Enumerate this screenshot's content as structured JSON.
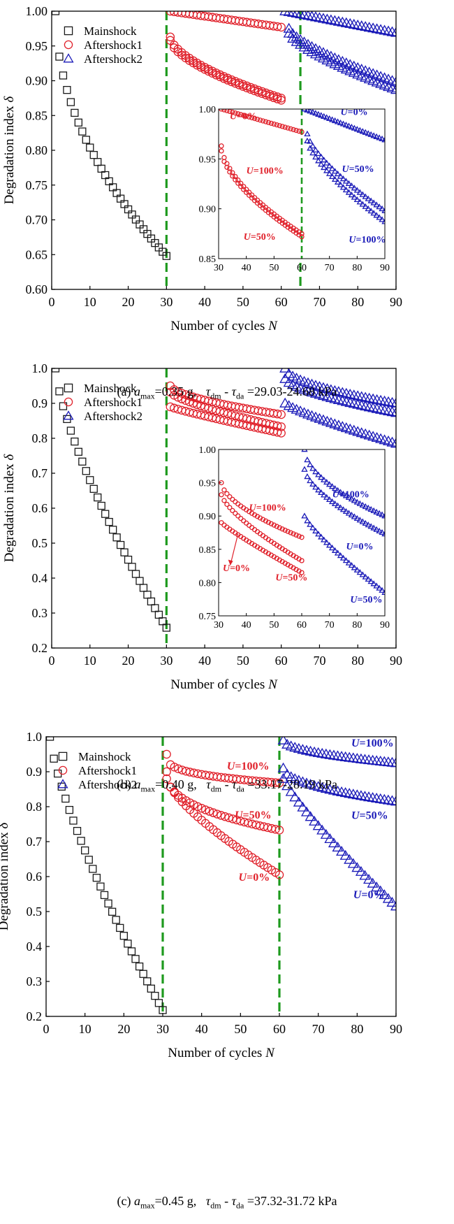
{
  "colors": {
    "mainshock": "#1a1a1a",
    "aftershock1": "#e0202a",
    "aftershock2": "#1a1ab8",
    "divider": "#1e9a1e",
    "label_red": "#e0202a",
    "label_blue": "#1a1ab8"
  },
  "legend_entries": [
    "Mainshock",
    "Aftershock1",
    "Aftershock2"
  ],
  "chart_data": [
    {
      "type": "scatter",
      "panel": "a",
      "title": "",
      "xlabel": "Number of cycles N",
      "ylabel": "Degradation index δ",
      "xlim": [
        0,
        90
      ],
      "ylim": [
        0.6,
        1.0
      ],
      "xticks": [
        0,
        10,
        20,
        30,
        40,
        50,
        60,
        70,
        80,
        90
      ],
      "yticks": [
        0.6,
        0.65,
        0.7,
        0.75,
        0.8,
        0.85,
        0.9,
        0.95,
        1.0
      ],
      "ytick_decimals": 2,
      "legend": [
        "Mainshock",
        "Aftershock1",
        "Aftershock2"
      ],
      "legend_position": "top-left",
      "vlines": [
        30,
        65
      ],
      "caption": {
        "prefix": "(a) ",
        "a_label": "a",
        "a_sub": "max",
        "amax_value": "=0.35 g,",
        "tau_label": "τ",
        "tau_dm_sub": "dm",
        "dash": " - ",
        "tau_da_sub": "da",
        "tau_value": " =29.03-24.68 kPa"
      },
      "mainshock": {
        "n_start": 1,
        "n_end": 30,
        "y_start": 1.0,
        "y_end": 0.648,
        "shape": 0.5
      },
      "aftershock1": [
        {
          "U": "0%",
          "n_start": 31,
          "n_end": 60,
          "y_start": 1.0,
          "y_end": 0.977,
          "shape": 1.0
        },
        {
          "U": "50%",
          "n_start": 31,
          "n_end": 60,
          "y_start": 0.963,
          "y_end": 0.875,
          "shape": 0.6
        },
        {
          "U": "100%",
          "n_start": 31,
          "n_end": 60,
          "y_start": 0.958,
          "y_end": 0.872,
          "shape": 0.62
        }
      ],
      "aftershock2": [
        {
          "U": "0%",
          "n_start": 61,
          "n_end": 90,
          "y_start": 1.0,
          "y_end": 0.969,
          "shape": 1.0
        },
        {
          "U": "50%",
          "n_start": 62,
          "n_end": 90,
          "y_start": 0.975,
          "y_end": 0.898,
          "shape": 0.7
        },
        {
          "U": "100%",
          "n_start": 62,
          "n_end": 90,
          "y_start": 0.968,
          "y_end": 0.887,
          "shape": 0.72
        }
      ],
      "inset": {
        "xlim": [
          30,
          90
        ],
        "ylim": [
          0.85,
          1.0
        ],
        "xticks": [
          30,
          40,
          50,
          60,
          70,
          80,
          90
        ],
        "yticks": [
          0.85,
          0.9,
          0.95,
          1.0
        ],
        "ytick_decimals": 2,
        "vlines": [
          60
        ],
        "labels": [
          {
            "text": "=0%",
            "prefix": "U",
            "color": "red",
            "x": 34,
            "y": 0.99
          },
          {
            "text": "=100%",
            "prefix": "U",
            "color": "red",
            "x": 40,
            "y": 0.935
          },
          {
            "text": "=50%",
            "prefix": "U",
            "color": "red",
            "x": 39,
            "y": 0.869
          },
          {
            "text": "=0%",
            "prefix": "U",
            "color": "blue",
            "x": 74,
            "y": 0.994
          },
          {
            "text": "=50%",
            "prefix": "U",
            "color": "blue",
            "x": 74.5,
            "y": 0.937
          },
          {
            "text": "=100%",
            "prefix": "U",
            "color": "blue",
            "x": 77,
            "y": 0.866
          }
        ]
      }
    },
    {
      "type": "scatter",
      "panel": "b",
      "title": "",
      "xlabel": "Number of cycles N",
      "ylabel": "Degradation index δ",
      "xlim": [
        0,
        90
      ],
      "ylim": [
        0.2,
        1.0
      ],
      "xticks": [
        0,
        10,
        20,
        30,
        40,
        50,
        60,
        70,
        80,
        90
      ],
      "yticks": [
        0.2,
        0.3,
        0.4,
        0.5,
        0.6,
        0.7,
        0.8,
        0.9,
        1.0
      ],
      "ytick_decimals": 1,
      "legend": [
        "Mainshock",
        "Aftershock1",
        "Aftershock2"
      ],
      "legend_position": "top-left",
      "vlines": [
        30
      ],
      "caption": {
        "prefix": "(b) ",
        "a_label": "a",
        "a_sub": "max",
        "amax_value": "=0.40 g,",
        "tau_label": "τ",
        "tau_dm_sub": "dm",
        "dash": " - ",
        "tau_da_sub": "da",
        "tau_value": " =33.17-28.19 kPa"
      },
      "mainshock": {
        "n_start": 1,
        "n_end": 30,
        "y_start": 1.0,
        "y_end": 0.258,
        "shape": 0.72
      },
      "aftershock1": [
        {
          "U": "0%",
          "n_start": 31,
          "n_end": 60,
          "y_start": 0.95,
          "y_end": 0.868,
          "shape": 0.6
        },
        {
          "U": "100%",
          "n_start": 31,
          "n_end": 60,
          "y_start": 0.932,
          "y_end": 0.833,
          "shape": 0.72
        },
        {
          "U": "50%",
          "n_start": 31,
          "n_end": 60,
          "y_start": 0.89,
          "y_end": 0.815,
          "shape": 0.9
        }
      ],
      "aftershock2": [
        {
          "U": "100%",
          "n_start": 61,
          "n_end": 90,
          "y_start": 1.0,
          "y_end": 0.9,
          "shape": 0.55
        },
        {
          "U": "0%",
          "n_start": 61,
          "n_end": 90,
          "y_start": 0.97,
          "y_end": 0.873,
          "shape": 0.65
        },
        {
          "U": "50%",
          "n_start": 61,
          "n_end": 90,
          "y_start": 0.9,
          "y_end": 0.785,
          "shape": 0.82
        }
      ],
      "inset": {
        "xlim": [
          30,
          90
        ],
        "ylim": [
          0.75,
          1.0
        ],
        "xticks": [
          30,
          40,
          50,
          60,
          70,
          80,
          90
        ],
        "yticks": [
          0.75,
          0.8,
          0.85,
          0.9,
          0.95,
          1.0
        ],
        "ytick_decimals": 2,
        "vlines": [],
        "labels": [
          {
            "text": "=100%",
            "prefix": "U",
            "color": "red",
            "x": 41,
            "y": 0.908
          },
          {
            "text": "=0%",
            "prefix": "U",
            "color": "red",
            "x": 31.5,
            "y": 0.817
          },
          {
            "text": "=50%",
            "prefix": "U",
            "color": "red",
            "x": 50.5,
            "y": 0.803
          },
          {
            "text": "=100%",
            "prefix": "U",
            "color": "blue",
            "x": 71,
            "y": 0.928
          },
          {
            "text": "=0%",
            "prefix": "U",
            "color": "blue",
            "x": 76,
            "y": 0.85
          },
          {
            "text": "=50%",
            "prefix": "U",
            "color": "blue",
            "x": 77.5,
            "y": 0.77
          }
        ],
        "arrow": {
          "from_x": 37,
          "from_y": 0.873,
          "to_x": 34.2,
          "to_y": 0.826
        }
      }
    },
    {
      "type": "scatter",
      "panel": "c",
      "title": "",
      "xlabel": "Number of cycles N",
      "ylabel": "Degradation index δ",
      "xlim": [
        0,
        90
      ],
      "ylim": [
        0.2,
        1.0
      ],
      "xticks": [
        0,
        10,
        20,
        30,
        40,
        50,
        60,
        70,
        80,
        90
      ],
      "yticks": [
        0.2,
        0.3,
        0.4,
        0.5,
        0.6,
        0.7,
        0.8,
        0.9,
        1.0
      ],
      "ytick_decimals": 1,
      "legend": [
        "Mainshock",
        "Aftershock1",
        "Aftershock2"
      ],
      "legend_position": "top-left",
      "vlines": [
        30,
        60
      ],
      "caption": {
        "prefix": "(c) ",
        "a_label": "a",
        "a_sub": "max",
        "amax_value": "=0.45 g,",
        "tau_label": "τ",
        "tau_dm_sub": "dm",
        "dash": " - ",
        "tau_da_sub": "da",
        "tau_value": " =37.32-31.72 kPa"
      },
      "mainshock": {
        "n_start": 1,
        "n_end": 30,
        "y_start": 1.0,
        "y_end": 0.218,
        "shape": 0.75
      },
      "aftershock1": [
        {
          "U": "100%",
          "n_start": 31,
          "n_end": 60,
          "y_start": 0.95,
          "y_end": 0.868,
          "shape": 0.3
        },
        {
          "U": "50%",
          "n_start": 31,
          "n_end": 60,
          "y_start": 0.9,
          "y_end": 0.733,
          "shape": 0.4
        },
        {
          "U": "0%",
          "n_start": 31,
          "n_end": 60,
          "y_start": 0.88,
          "y_end": 0.605,
          "shape": 0.72
        }
      ],
      "aftershock2": [
        {
          "U": "100%",
          "n_start": 61,
          "n_end": 90,
          "y_start": 0.99,
          "y_end": 0.925,
          "shape": 0.5
        },
        {
          "U": "50%",
          "n_start": 61,
          "n_end": 90,
          "y_start": 0.91,
          "y_end": 0.815,
          "shape": 0.5
        },
        {
          "U": "0%",
          "n_start": 61,
          "n_end": 90,
          "y_start": 0.88,
          "y_end": 0.515,
          "shape": 0.85
        }
      ],
      "labels": [
        {
          "text": "=100%",
          "prefix": "U",
          "color": "red",
          "x": 46.5,
          "y": 0.906
        },
        {
          "text": "=50%",
          "prefix": "U",
          "color": "red",
          "x": 48.5,
          "y": 0.766
        },
        {
          "text": "=0%",
          "prefix": "U",
          "color": "red",
          "x": 49.5,
          "y": 0.588
        },
        {
          "text": "=100%",
          "prefix": "U",
          "color": "blue",
          "x": 78.5,
          "y": 0.972
        },
        {
          "text": "=50%",
          "prefix": "U",
          "color": "blue",
          "x": 78.5,
          "y": 0.765
        },
        {
          "text": "=0%",
          "prefix": "U",
          "color": "blue",
          "x": 79,
          "y": 0.538
        }
      ]
    }
  ]
}
